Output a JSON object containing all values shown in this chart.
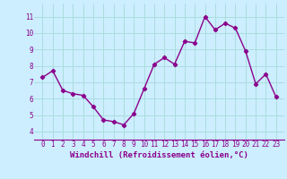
{
  "x": [
    0,
    1,
    2,
    3,
    4,
    5,
    6,
    7,
    8,
    9,
    10,
    11,
    12,
    13,
    14,
    15,
    16,
    17,
    18,
    19,
    20,
    21,
    22,
    23
  ],
  "y": [
    7.3,
    7.7,
    6.5,
    6.3,
    6.2,
    5.5,
    4.7,
    4.6,
    4.4,
    5.1,
    6.6,
    8.1,
    8.5,
    8.1,
    9.5,
    9.4,
    11.0,
    10.2,
    10.6,
    10.3,
    8.9,
    6.9,
    7.5,
    6.1
  ],
  "line_color": "#8b008b",
  "marker": "D",
  "marker_size": 2.2,
  "line_width": 1.0,
  "bg_color": "#cceeff",
  "grid_color": "#aadddd",
  "xlabel": "Windchill (Refroidissement éolien,°C)",
  "xlabel_color": "#8b008b",
  "tick_color": "#8b008b",
  "ylim": [
    3.5,
    11.8
  ],
  "yticks": [
    4,
    5,
    6,
    7,
    8,
    9,
    10,
    11
  ],
  "xticks": [
    0,
    1,
    2,
    3,
    4,
    5,
    6,
    7,
    8,
    9,
    10,
    11,
    12,
    13,
    14,
    15,
    16,
    17,
    18,
    19,
    20,
    21,
    22,
    23
  ],
  "tick_fontsize": 5.5,
  "xlabel_fontsize": 6.5
}
